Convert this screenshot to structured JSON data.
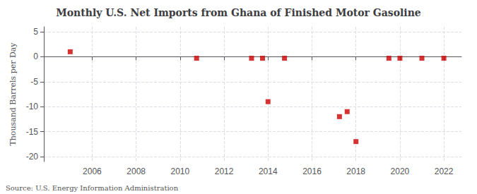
{
  "chart_data": {
    "type": "scatter",
    "title": "Monthly U.S. Net Imports from Ghana of Finished Motor Gasoline",
    "ylabel": "Thousand Barrels per Day",
    "source": "Source: U.S. Energy Information Administration",
    "x": [
      2005.0,
      2010.75,
      2013.25,
      2013.75,
      2014.0,
      2014.75,
      2017.25,
      2017.6,
      2018.0,
      2019.5,
      2020.0,
      2021.0,
      2022.0
    ],
    "values": [
      1.0,
      -0.3,
      -0.3,
      -0.3,
      -9.0,
      -0.3,
      -12.0,
      -11.0,
      -17.0,
      -0.3,
      -0.3,
      -0.3,
      -0.3
    ],
    "color": "#cc0000",
    "marker": "square",
    "xlim": [
      2003.8,
      2022.8
    ],
    "xticks": [
      2006,
      2008,
      2010,
      2012,
      2014,
      2016,
      2018,
      2020,
      2022
    ],
    "ylim": [
      -21,
      6
    ],
    "yticks": [
      -20,
      -15,
      -10,
      -5,
      0,
      5
    ],
    "grid": true
  }
}
